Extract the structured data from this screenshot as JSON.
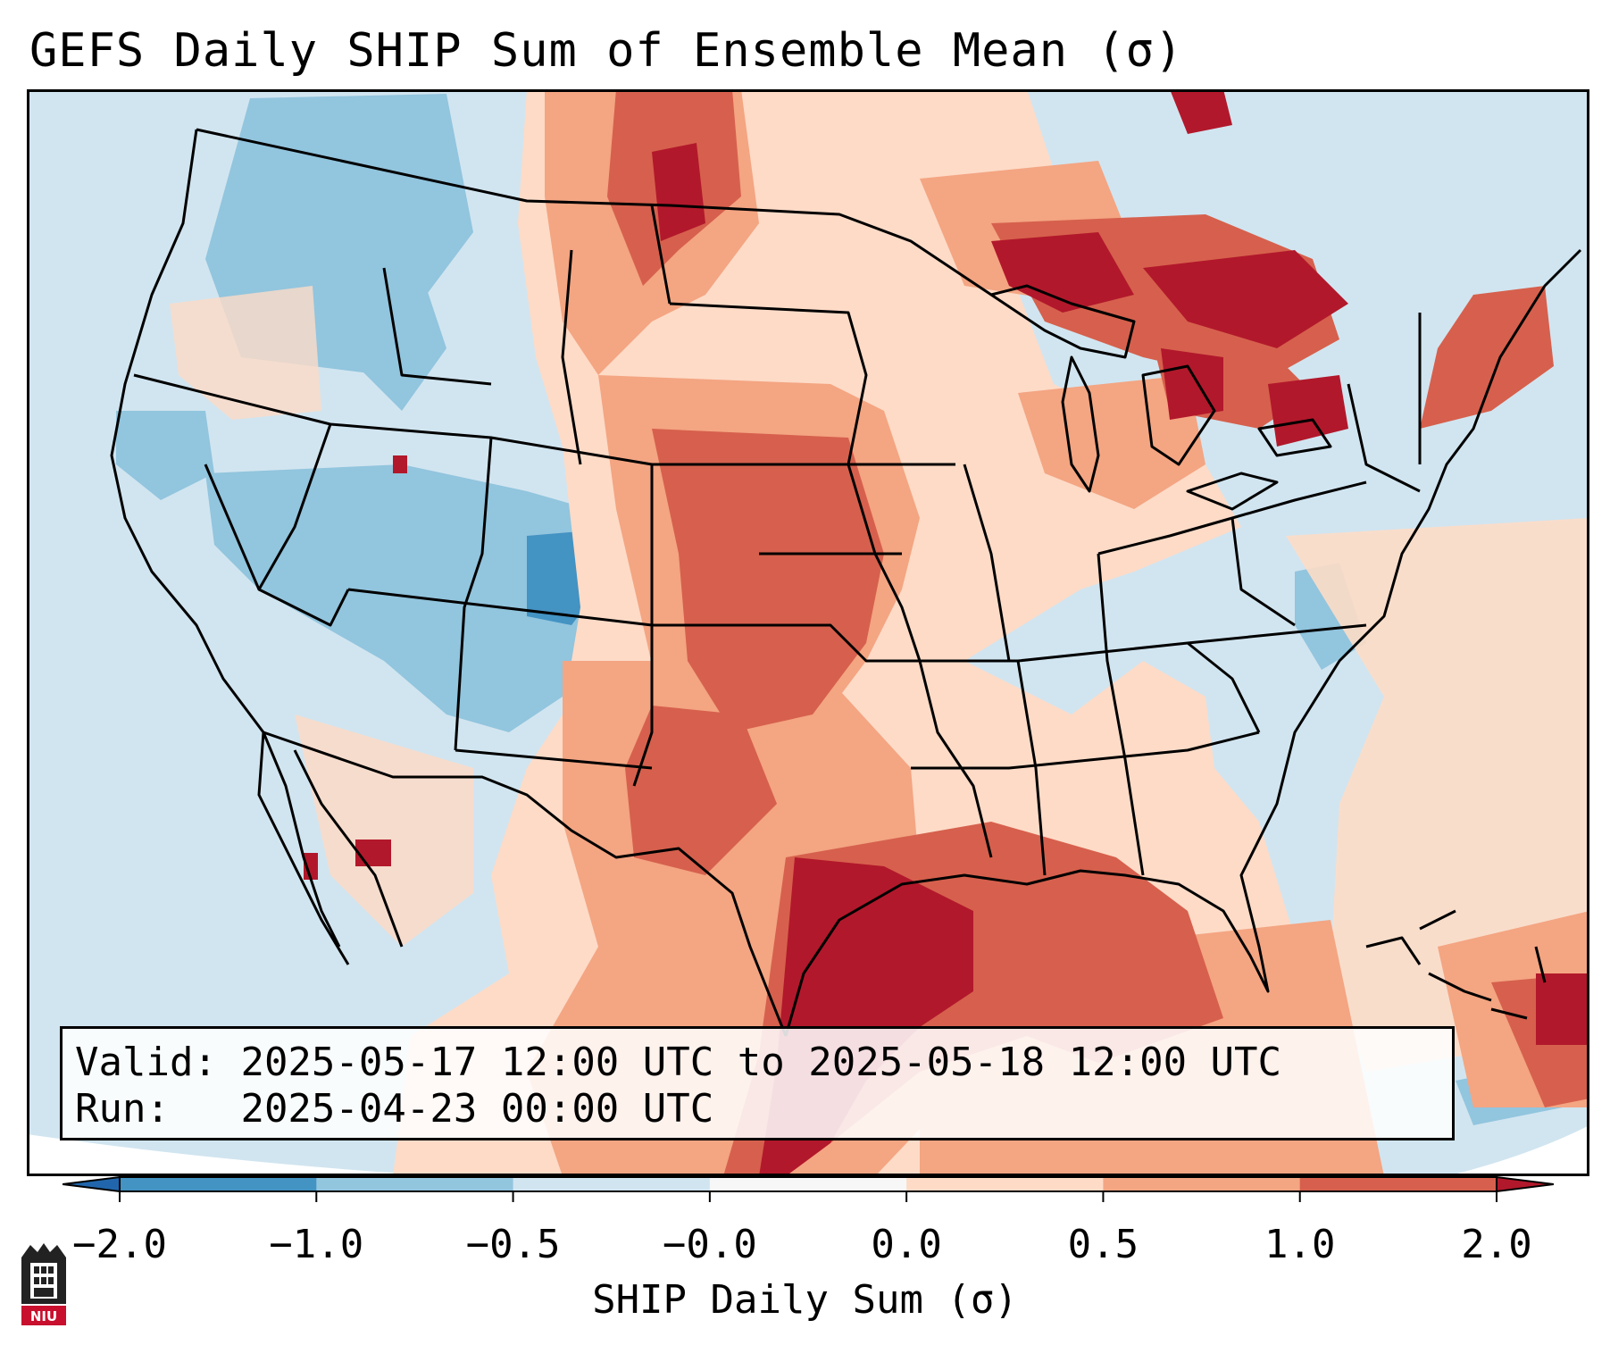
{
  "title": "GEFS Daily SHIP Sum of Ensemble Mean (σ)",
  "info": {
    "valid_label": "Valid:",
    "valid_value": "2025-05-17 12:00 UTC to 2025-05-18 12:00 UTC",
    "run_label": "Run:",
    "run_value": "2025-04-23 00:00 UTC"
  },
  "colorbar": {
    "label": "SHIP Daily Sum (σ)",
    "tick_labels": [
      "−2.0",
      "−1.0",
      "−0.5",
      "−0.0",
      "0.0",
      "0.5",
      "1.0",
      "2.0"
    ],
    "bins": [
      {
        "range": "< -2.0",
        "color": "#2166ac"
      },
      {
        "range": "-2.0 to -1.0",
        "color": "#4393c3"
      },
      {
        "range": "-1.0 to -0.5",
        "color": "#92c5de"
      },
      {
        "range": "-0.5 to -0.0",
        "color": "#d1e5f0"
      },
      {
        "range": "-0.0 to 0.0",
        "color": "#f7f7f7"
      },
      {
        "range": "0.0 to 0.5",
        "color": "#fddbc7"
      },
      {
        "range": "0.5 to 1.0",
        "color": "#f4a582"
      },
      {
        "range": "1.0 to 2.0",
        "color": "#d6604d"
      },
      {
        "range": "> 2.0",
        "color": "#b2182b"
      }
    ]
  },
  "map": {
    "region": "Continental United States",
    "pattern": "Negative anomalies over the western US and Mid-Atlantic; positive anomalies over the Plains, Great Lakes and Gulf of Mexico"
  },
  "logo": {
    "icon": "niu-logo-icon",
    "text": "NIU"
  }
}
